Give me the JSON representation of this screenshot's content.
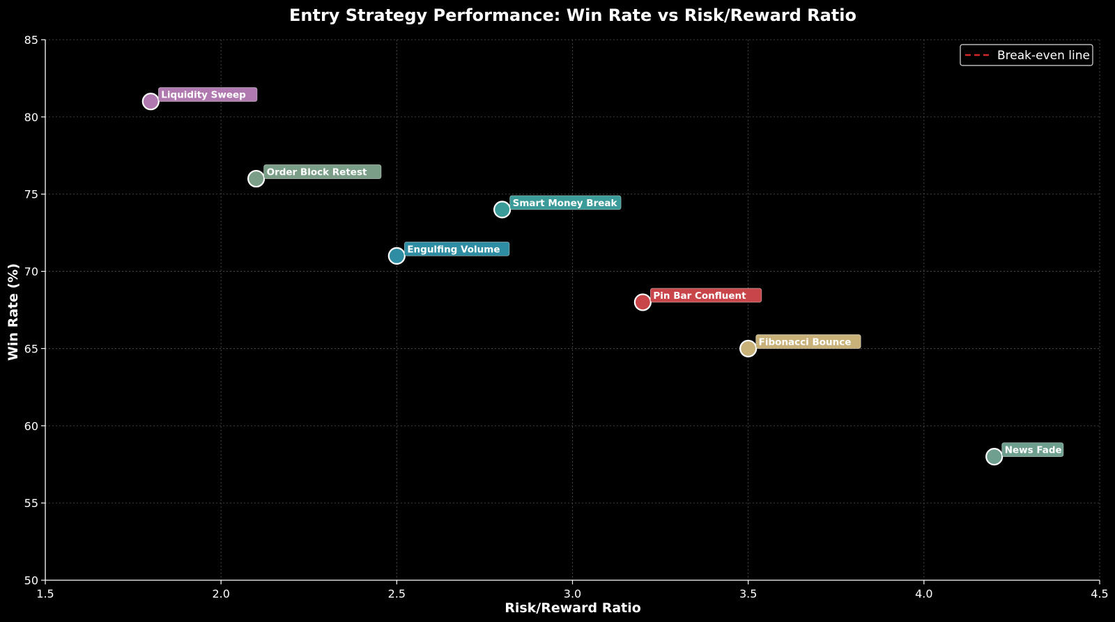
{
  "chart_data": {
    "type": "scatter",
    "title": "Entry Strategy Performance: Win Rate vs Risk/Reward Ratio",
    "xlabel": "Risk/Reward Ratio",
    "ylabel": "Win Rate (%)",
    "xlim": [
      1.5,
      4.5
    ],
    "ylim": [
      50,
      85
    ],
    "xticks": [
      "1.5",
      "2.0",
      "2.5",
      "3.0",
      "3.5",
      "4.0",
      "4.5"
    ],
    "yticks": [
      "50",
      "55",
      "60",
      "65",
      "70",
      "75",
      "80",
      "85"
    ],
    "grid": true,
    "legend": {
      "position": "top-right",
      "label": "Break-even line",
      "color": "#d62728",
      "style": "dashed"
    },
    "points": [
      {
        "label": "Liquidity Sweep",
        "x": 1.8,
        "y": 81,
        "color": "#b07ab0"
      },
      {
        "label": "Order Block Retest",
        "x": 2.1,
        "y": 76,
        "color": "#7a9e87"
      },
      {
        "label": "Smart Money Break",
        "x": 2.8,
        "y": 74,
        "color": "#3a9b98"
      },
      {
        "label": "Engulfing Volume",
        "x": 2.5,
        "y": 71,
        "color": "#2f8da3"
      },
      {
        "label": "Pin Bar Confluent",
        "x": 3.2,
        "y": 68,
        "color": "#c8454a"
      },
      {
        "label": "Fibonacci Bounce",
        "x": 3.5,
        "y": 65,
        "color": "#c9b27a"
      },
      {
        "label": "News Fade",
        "x": 4.2,
        "y": 58,
        "color": "#6fa08f"
      }
    ]
  }
}
